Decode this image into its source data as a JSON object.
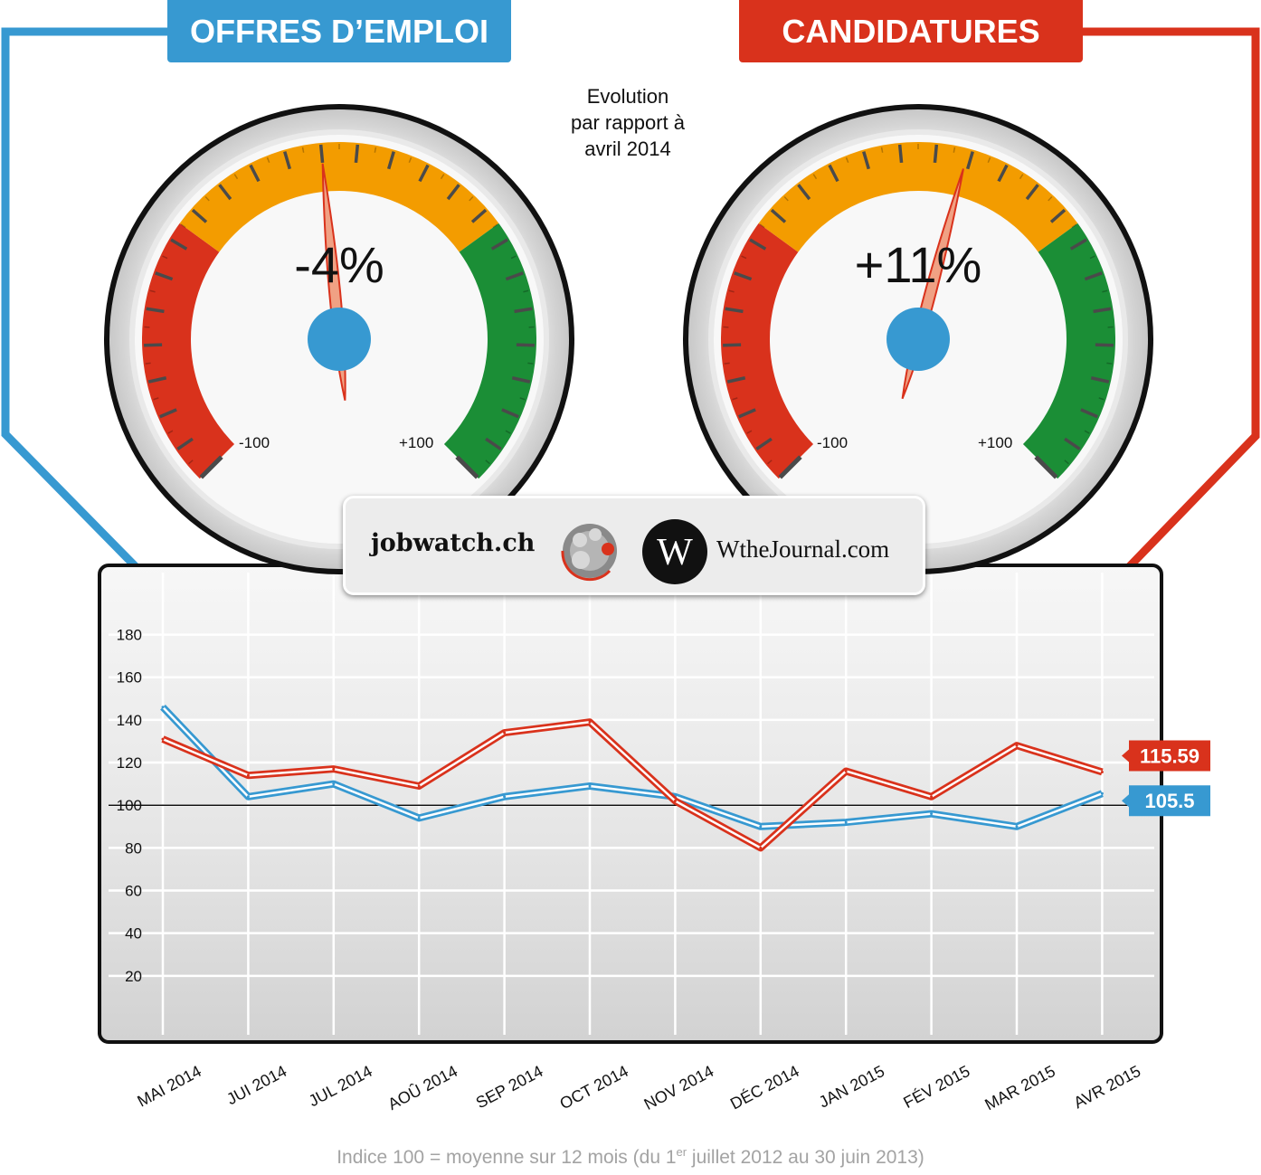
{
  "header": {
    "left_title": "OFFRES D’EMPLOI",
    "right_title": "CANDIDATURES"
  },
  "evolution_label": [
    "Evolution",
    "par rapport à",
    "avril 2014"
  ],
  "gauges": [
    {
      "name": "Offres d'emploi",
      "value": -4,
      "display": "-4%",
      "min_label": "-100",
      "max_label": "+100",
      "needle_color": "#f0a184"
    },
    {
      "name": "Candidatures",
      "value": 11,
      "display": "+11%",
      "min_label": "-100",
      "max_label": "+100",
      "needle_color": "#f0a184"
    }
  ],
  "logos": {
    "left": "jobwatch.ch",
    "right": "WtheJournal.com",
    "right_mark": "W"
  },
  "colors": {
    "offres": "#3799d1",
    "candidatures": "#d9321c",
    "gauge_red": "#d9321c",
    "gauge_orange": "#f39c00",
    "gauge_green": "#1b8e36"
  },
  "footnote": {
    "before": "Indice 100 = moyenne sur 12 mois (du 1",
    "sup": "er",
    "after": " juillet 2012 au 30 juin 2013)"
  },
  "chart_data": {
    "type": "line",
    "categories": [
      "MAI 2014",
      "JUI 2014",
      "JUL 2014",
      "AOÛ 2014",
      "SEP 2014",
      "OCT 2014",
      "NOV 2014",
      "DÉC 2014",
      "JAN 2015",
      "FÉV 2015",
      "MAR 2015",
      "AVR 2015"
    ],
    "series": [
      {
        "name": "OFFRES D’EMPLOI",
        "color": "#3799d1",
        "values": [
          146,
          104,
          110,
          94,
          104,
          109,
          104,
          90,
          92,
          96,
          90,
          105.5
        ],
        "end_label": "105.5"
      },
      {
        "name": "CANDIDATURES",
        "color": "#d9321c",
        "values": [
          131,
          114,
          117,
          109,
          134,
          139,
          102,
          80,
          116,
          104,
          128,
          115.59
        ],
        "end_label": "115.59"
      }
    ],
    "y_ticks": [
      20,
      40,
      60,
      80,
      100,
      120,
      140,
      160,
      180
    ],
    "ylim": [
      0,
      190
    ],
    "reference_line": 100,
    "grid": true
  }
}
